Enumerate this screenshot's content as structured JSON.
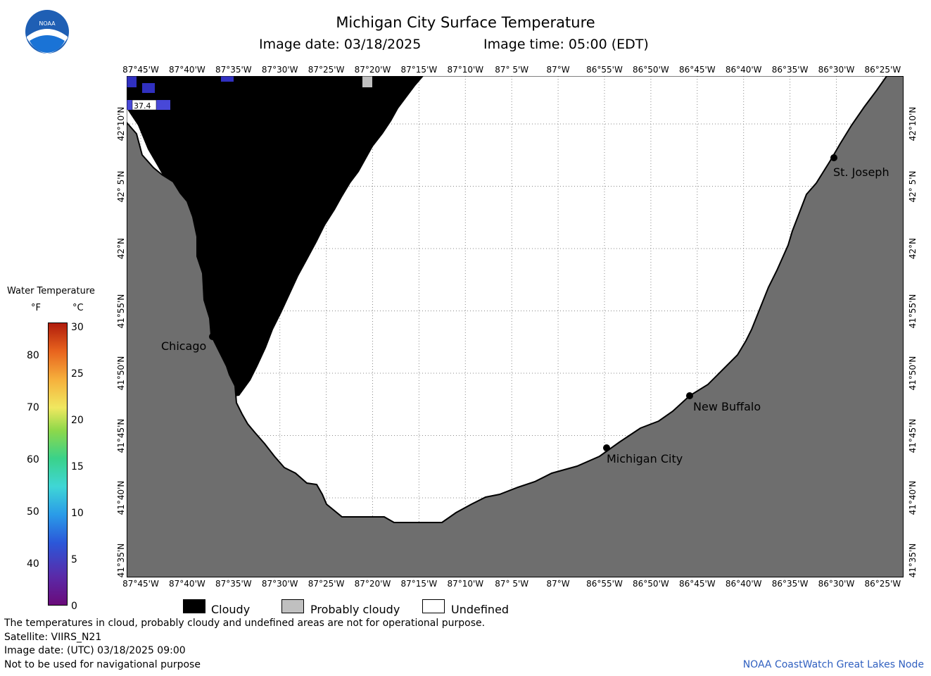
{
  "title": "Michigan City Surface Temperature",
  "image_date_label": "Image date: 03/18/2025",
  "image_time_label": "Image time: 05:00 (EDT)",
  "lon_ticks": [
    "87°45'W",
    "87°40'W",
    "87°35'W",
    "87°30'W",
    "87°25'W",
    "87°20'W",
    "87°15'W",
    "87°10'W",
    "87° 5'W",
    "87°W",
    "86°55'W",
    "86°50'W",
    "86°45'W",
    "86°40'W",
    "86°35'W",
    "86°30'W",
    "86°25'W"
  ],
  "lat_ticks": [
    "42°10'N",
    "42° 5'N",
    "42°N",
    "41°55'N",
    "41°50'N",
    "41°45'N",
    "41°40'N",
    "41°35'N"
  ],
  "scale": {
    "title": "Water Temperature",
    "unit_f": "°F",
    "unit_c": "°C",
    "fahrenheit": [
      "80",
      "70",
      "60",
      "50",
      "40"
    ],
    "celsius": [
      "30",
      "25",
      "20",
      "15",
      "10",
      "5",
      "0"
    ]
  },
  "legend": {
    "cloudy": "Cloudy",
    "probably_cloudy": "Probably cloudy",
    "undefined": "Undefined"
  },
  "cities": {
    "chicago": "Chicago",
    "st_joseph": "St. Joseph",
    "new_buffalo": "New Buffalo",
    "michigan_city": "Michigan City"
  },
  "data_label": "37.4",
  "info": {
    "line1": "The temperatures in cloud, probably cloudy and undefined areas are not for operational purpose.",
    "line2": "Satellite: VIIRS_N21",
    "line3": "Image date: (UTC) 03/18/2025  09:00",
    "line4": "Not to be used for navigational purpose"
  },
  "credit": "NOAA CoastWatch Great Lakes Node",
  "logo_text": "NOAA",
  "colors": {
    "land": "#6e6e6e",
    "cloud": "#000000",
    "credit": "#3060c0",
    "probably_cloudy": "#c0c0c0"
  }
}
